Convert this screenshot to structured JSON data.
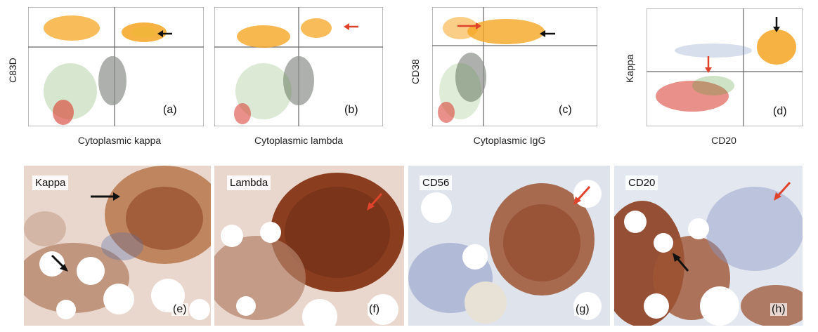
{
  "flow_panels": [
    {
      "id": "a",
      "ylabel": "C83D",
      "xlabel": "Cytoplasmic kappa",
      "letter": "(a)"
    },
    {
      "id": "b",
      "ylabel": "",
      "xlabel": "Cytoplasmic lambda",
      "letter": "(b)"
    },
    {
      "id": "c",
      "ylabel": "CD38",
      "xlabel": "Cytoplasmic IgG",
      "letter": "(c)"
    },
    {
      "id": "d",
      "ylabel": "Kappa",
      "xlabel": "CD20",
      "letter": "(d)"
    }
  ],
  "histo_panels": [
    {
      "id": "e",
      "stain": "Kappa",
      "letter": "(e)"
    },
    {
      "id": "f",
      "stain": "Lambda",
      "letter": "(f)"
    },
    {
      "id": "g",
      "stain": "CD56",
      "letter": "(g)"
    },
    {
      "id": "h",
      "stain": "CD20",
      "letter": "(h)"
    }
  ],
  "colors": {
    "orange_population": "#f5a623",
    "gray_population": "#8a8f8a",
    "red_population": "#d9463b",
    "green_population": "#5e9e3e",
    "arrow_black": "#111111",
    "arrow_red": "#e0432b",
    "brown_stain": "#8b3e1f",
    "hematoxylin_blue": "#5b6fa6",
    "tissue_pink": "#e9d6cc"
  }
}
